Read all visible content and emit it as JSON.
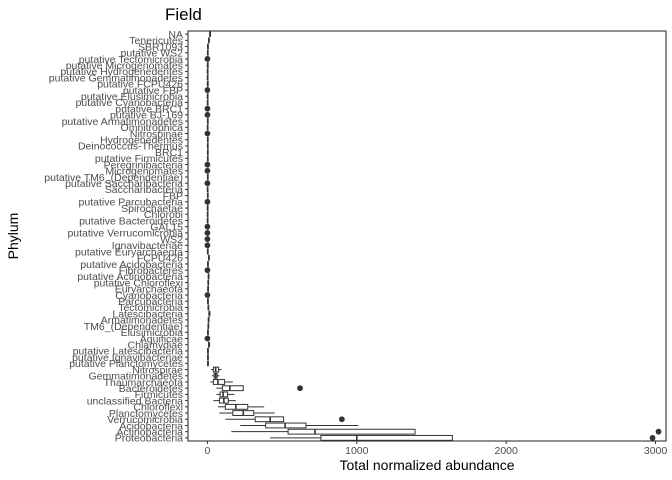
{
  "chart_data": {
    "type": "boxplot",
    "orientation": "horizontal",
    "title": "Field",
    "xlabel": "Total normalized abundance",
    "ylabel": "Phylum",
    "xlim": [
      -130,
      3070
    ],
    "xticks": [
      0,
      1000,
      2000,
      3000
    ],
    "grid": false,
    "legend": "none",
    "colors": {
      "box": "#333333",
      "outlier": "#333333",
      "panel_border": "#333333",
      "text": "#4d4d4d"
    },
    "categories": [
      "NA",
      "Tenericutes",
      "SBR1093",
      "putative WS2",
      "putative Tectomicrobia",
      "putative Microgenomates",
      "putative Hydrogenedentes",
      "putative Gemmatimonadetes",
      "putative FCPU426",
      "putative FBP",
      "putative Elusimicrobia",
      "putative Cyanobacteria",
      "putative BRC1",
      "putative BJ-169",
      "putative Armatimonadetes",
      "Omnitrophica",
      "Nitrospinae",
      "Hydrogenedentes",
      "Deinococcus-Thermus",
      "BRC1",
      "putative Firmicutes",
      "Peregrinibacteria",
      "Microgenomates",
      "putative TM6_(Dependentiae)",
      "putative Saccharibacteria",
      "Saccharibacteria",
      "FBP",
      "putative Parcubacteria",
      "Spirochaetae",
      "Chlorobi",
      "putative Bacteroidetes",
      "GAL15",
      "putative Verrucomicrobia",
      "WS2",
      "Ignavibacteriae",
      "putative Euryarchaeota",
      "FCPU426",
      "putative Acidobacteria",
      "Fibrobacteres",
      "putative Actinobacteria",
      "putative Chloroflexi",
      "Euryarchaeota",
      "Cyanobacteria",
      "Parcubacteria",
      "Tectomicrobia",
      "Latescibacteria",
      "Armatimonadetes",
      "TM6_(Dependentiae)",
      "Elusimicrobia",
      "Aquificae",
      "Chlamydiae",
      "putative Latescibacteria",
      "putative Ignavibacteriae",
      "putative Planctomycetes",
      "Nitrospirae",
      "Gemmatimonadetes",
      "Thaumarchaeota",
      "Bacteroidetes",
      "Firmicutes",
      "unclassified Bacteria",
      "Chloroflexi",
      "Planctomycetes",
      "Verrucomicrobia",
      "Acidobacteria",
      "Actinobacteria",
      "Proteobacteria"
    ],
    "boxes": [
      {
        "lo": 12,
        "q1": 16,
        "med": 18,
        "q3": 20,
        "hi": 24,
        "out": []
      },
      {
        "lo": 4,
        "q1": 8,
        "med": 10,
        "q3": 12,
        "hi": 16,
        "out": []
      },
      {
        "lo": 0,
        "q1": 2,
        "med": 3,
        "q3": 4,
        "hi": 6,
        "out": []
      },
      {
        "lo": 0,
        "q1": 1,
        "med": 2,
        "q3": 3,
        "hi": 5,
        "out": []
      },
      {
        "lo": 0,
        "q1": 1,
        "med": 2,
        "q3": 3,
        "hi": 5,
        "out": [
          0
        ]
      },
      {
        "lo": 0,
        "q1": 1,
        "med": 1,
        "q3": 2,
        "hi": 3,
        "out": []
      },
      {
        "lo": 0,
        "q1": 0,
        "med": 1,
        "q3": 1,
        "hi": 2,
        "out": []
      },
      {
        "lo": 0,
        "q1": 0,
        "med": 1,
        "q3": 1,
        "hi": 2,
        "out": []
      },
      {
        "lo": 0,
        "q1": 1,
        "med": 1,
        "q3": 2,
        "hi": 3,
        "out": []
      },
      {
        "lo": 0,
        "q1": 0,
        "med": 1,
        "q3": 1,
        "hi": 2,
        "out": [
          0
        ]
      },
      {
        "lo": 0,
        "q1": 0,
        "med": 1,
        "q3": 1,
        "hi": 2,
        "out": []
      },
      {
        "lo": 0,
        "q1": 0,
        "med": 1,
        "q3": 1,
        "hi": 2,
        "out": []
      },
      {
        "lo": 0,
        "q1": 0,
        "med": 1,
        "q3": 1,
        "hi": 2,
        "out": [
          0
        ]
      },
      {
        "lo": 0,
        "q1": 1,
        "med": 1,
        "q3": 2,
        "hi": 3,
        "out": [
          0
        ]
      },
      {
        "lo": 0,
        "q1": 1,
        "med": 2,
        "q3": 3,
        "hi": 4,
        "out": []
      },
      {
        "lo": 0,
        "q1": 0,
        "med": 1,
        "q3": 1,
        "hi": 2,
        "out": []
      },
      {
        "lo": 0,
        "q1": 0,
        "med": 1,
        "q3": 1,
        "hi": 2,
        "out": [
          0
        ]
      },
      {
        "lo": 0,
        "q1": 1,
        "med": 2,
        "q3": 3,
        "hi": 4,
        "out": []
      },
      {
        "lo": 0,
        "q1": 1,
        "med": 2,
        "q3": 3,
        "hi": 4,
        "out": []
      },
      {
        "lo": 0,
        "q1": 1,
        "med": 2,
        "q3": 3,
        "hi": 5,
        "out": []
      },
      {
        "lo": 0,
        "q1": 1,
        "med": 2,
        "q3": 3,
        "hi": 4,
        "out": []
      },
      {
        "lo": 0,
        "q1": 1,
        "med": 2,
        "q3": 3,
        "hi": 5,
        "out": [
          0
        ]
      },
      {
        "lo": 0,
        "q1": 0,
        "med": 1,
        "q3": 1,
        "hi": 2,
        "out": [
          0
        ]
      },
      {
        "lo": 0,
        "q1": 1,
        "med": 2,
        "q3": 3,
        "hi": 5,
        "out": []
      },
      {
        "lo": 0,
        "q1": 1,
        "med": 2,
        "q3": 3,
        "hi": 5,
        "out": [
          0
        ]
      },
      {
        "lo": 0,
        "q1": 0,
        "med": 1,
        "q3": 1,
        "hi": 2,
        "out": []
      },
      {
        "lo": 0,
        "q1": 1,
        "med": 2,
        "q3": 3,
        "hi": 4,
        "out": []
      },
      {
        "lo": 0,
        "q1": 1,
        "med": 2,
        "q3": 3,
        "hi": 4,
        "out": [
          0
        ]
      },
      {
        "lo": 0,
        "q1": 0,
        "med": 1,
        "q3": 1,
        "hi": 2,
        "out": []
      },
      {
        "lo": 0,
        "q1": 0,
        "med": 1,
        "q3": 1,
        "hi": 2,
        "out": []
      },
      {
        "lo": 0,
        "q1": 0,
        "med": 1,
        "q3": 1,
        "hi": 2,
        "out": []
      },
      {
        "lo": 0,
        "q1": 1,
        "med": 1,
        "q3": 2,
        "hi": 3,
        "out": [
          0
        ]
      },
      {
        "lo": 0,
        "q1": 1,
        "med": 2,
        "q3": 3,
        "hi": 4,
        "out": [
          0
        ]
      },
      {
        "lo": 0,
        "q1": 1,
        "med": 2,
        "q3": 3,
        "hi": 4,
        "out": [
          0
        ]
      },
      {
        "lo": 0,
        "q1": 1,
        "med": 2,
        "q3": 3,
        "hi": 4,
        "out": [
          0
        ]
      },
      {
        "lo": 0,
        "q1": 1,
        "med": 2,
        "q3": 3,
        "hi": 5,
        "out": []
      },
      {
        "lo": 5,
        "q1": 8,
        "med": 10,
        "q3": 12,
        "hi": 15,
        "out": []
      },
      {
        "lo": 1,
        "q1": 2,
        "med": 3,
        "q3": 4,
        "hi": 6,
        "out": []
      },
      {
        "lo": 2,
        "q1": 4,
        "med": 5,
        "q3": 6,
        "hi": 8,
        "out": [
          0
        ]
      },
      {
        "lo": 3,
        "q1": 6,
        "med": 8,
        "q3": 10,
        "hi": 13,
        "out": []
      },
      {
        "lo": 2,
        "q1": 4,
        "med": 5,
        "q3": 7,
        "hi": 9,
        "out": []
      },
      {
        "lo": 1,
        "q1": 3,
        "med": 4,
        "q3": 5,
        "hi": 7,
        "out": []
      },
      {
        "lo": 1,
        "q1": 3,
        "med": 4,
        "q3": 5,
        "hi": 7,
        "out": [
          0
        ]
      },
      {
        "lo": 1,
        "q1": 2,
        "med": 3,
        "q3": 4,
        "hi": 6,
        "out": []
      },
      {
        "lo": 2,
        "q1": 4,
        "med": 6,
        "q3": 8,
        "hi": 10,
        "out": []
      },
      {
        "lo": 5,
        "q1": 10,
        "med": 13,
        "q3": 16,
        "hi": 20,
        "out": []
      },
      {
        "lo": 3,
        "q1": 6,
        "med": 8,
        "q3": 10,
        "hi": 13,
        "out": []
      },
      {
        "lo": 2,
        "q1": 4,
        "med": 6,
        "q3": 8,
        "hi": 10,
        "out": []
      },
      {
        "lo": 0,
        "q1": 2,
        "med": 3,
        "q3": 4,
        "hi": 6,
        "out": []
      },
      {
        "lo": 0,
        "q1": 1,
        "med": 2,
        "q3": 3,
        "hi": 5,
        "out": [
          0
        ]
      },
      {
        "lo": 4,
        "q1": 8,
        "med": 10,
        "q3": 13,
        "hi": 18,
        "out": []
      },
      {
        "lo": 1,
        "q1": 2,
        "med": 3,
        "q3": 4,
        "hi": 6,
        "out": []
      },
      {
        "lo": 1,
        "q1": 2,
        "med": 3,
        "q3": 4,
        "hi": 6,
        "out": []
      },
      {
        "lo": 1,
        "q1": 2,
        "med": 3,
        "q3": 5,
        "hi": 7,
        "out": []
      },
      {
        "lo": 25,
        "q1": 40,
        "med": 55,
        "q3": 75,
        "hi": 95,
        "out": []
      },
      {
        "lo": 30,
        "q1": 45,
        "med": 55,
        "q3": 65,
        "hi": 80,
        "out": []
      },
      {
        "lo": 20,
        "q1": 40,
        "med": 70,
        "q3": 115,
        "hi": 170,
        "out": []
      },
      {
        "lo": 60,
        "q1": 100,
        "med": 150,
        "q3": 240,
        "hi": 240,
        "out": [
          620
        ]
      },
      {
        "lo": 60,
        "q1": 85,
        "med": 105,
        "q3": 135,
        "hi": 180,
        "out": []
      },
      {
        "lo": 40,
        "q1": 80,
        "med": 110,
        "q3": 140,
        "hi": 190,
        "out": []
      },
      {
        "lo": 70,
        "q1": 120,
        "med": 190,
        "q3": 270,
        "hi": 380,
        "out": []
      },
      {
        "lo": 80,
        "q1": 170,
        "med": 240,
        "q3": 310,
        "hi": 450,
        "out": []
      },
      {
        "lo": 120,
        "q1": 320,
        "med": 420,
        "q3": 510,
        "hi": 510,
        "out": [
          900
        ]
      },
      {
        "lo": 220,
        "q1": 390,
        "med": 520,
        "q3": 660,
        "hi": 1010,
        "out": []
      },
      {
        "lo": 160,
        "q1": 540,
        "med": 720,
        "q3": 1390,
        "hi": 1390,
        "out": [
          3020
        ]
      },
      {
        "lo": 420,
        "q1": 760,
        "med": 1000,
        "q3": 1640,
        "hi": 1640,
        "out": [
          2980
        ]
      }
    ]
  }
}
